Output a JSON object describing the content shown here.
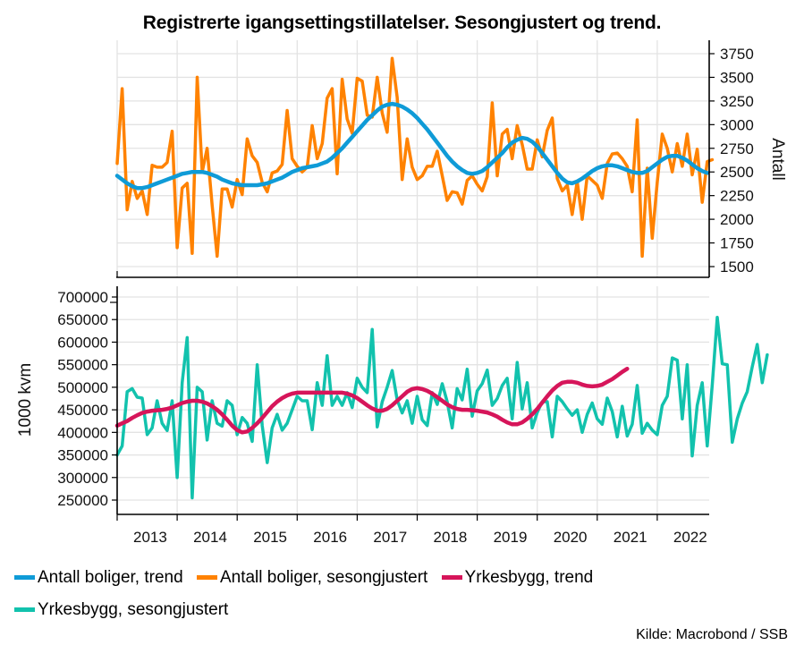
{
  "title": "Registrerte igangsettingstillatelser. Sesongjustert og trend.",
  "source": "Kilde: Macrobond / SSB",
  "colors": {
    "boliger_trend": "#0f9bd7",
    "boliger_sa": "#ff8200",
    "yrkesbygg_trend": "#d6155a",
    "yrkesbygg_sa": "#12c2ad",
    "grid": "#e3e3e3",
    "axis": "#000000"
  },
  "legend": [
    {
      "key": "boliger_trend",
      "label": "Antall boliger, trend"
    },
    {
      "key": "boliger_sa",
      "label": "Antall boliger, sesongjustert"
    },
    {
      "key": "yrkesbygg_trend",
      "label": "Yrkesbygg, trend"
    },
    {
      "key": "yrkesbygg_sa",
      "label": "Yrkesbygg, sesongjustert"
    }
  ],
  "chart_data": [
    {
      "type": "line",
      "panel": "top",
      "title": "Registrerte igangsettingstillatelser. Sesongjustert og trend.",
      "xlabel": "",
      "ylabel": "Antall",
      "yaxis_side": "right",
      "ylim": [
        1400,
        3850
      ],
      "yticks": [
        1500,
        1750,
        2000,
        2250,
        2500,
        2750,
        3000,
        3250,
        3500,
        3750
      ],
      "x_start": "2013-01",
      "x_frequency": "monthly",
      "grid": true,
      "series": [
        {
          "name": "Antall boliger, trend",
          "key": "boliger_trend",
          "values": [
            2460,
            2420,
            2380,
            2350,
            2330,
            2330,
            2340,
            2360,
            2380,
            2400,
            2420,
            2440,
            2460,
            2480,
            2490,
            2500,
            2500,
            2500,
            2490,
            2470,
            2450,
            2420,
            2400,
            2380,
            2370,
            2360,
            2360,
            2360,
            2360,
            2370,
            2380,
            2400,
            2420,
            2440,
            2470,
            2500,
            2520,
            2540,
            2550,
            2560,
            2570,
            2590,
            2610,
            2650,
            2700,
            2750,
            2810,
            2870,
            2930,
            2990,
            3050,
            3100,
            3150,
            3190,
            3210,
            3220,
            3210,
            3190,
            3160,
            3120,
            3070,
            3010,
            2950,
            2880,
            2810,
            2740,
            2670,
            2610,
            2560,
            2520,
            2490,
            2480,
            2490,
            2510,
            2550,
            2600,
            2650,
            2700,
            2760,
            2810,
            2840,
            2860,
            2850,
            2820,
            2770,
            2700,
            2630,
            2560,
            2490,
            2430,
            2390,
            2380,
            2400,
            2430,
            2470,
            2510,
            2540,
            2560,
            2570,
            2570,
            2560,
            2540,
            2520,
            2500,
            2490,
            2490,
            2510,
            2550,
            2590,
            2630,
            2660,
            2670,
            2670,
            2650,
            2620,
            2580,
            2540,
            2510,
            2490
          ]
        },
        {
          "name": "Antall boliger, sesongjustert",
          "key": "boliger_sa",
          "values": [
            2590,
            3380,
            2100,
            2400,
            2220,
            2300,
            2050,
            2570,
            2550,
            2550,
            2600,
            2930,
            1700,
            2330,
            2380,
            1640,
            3500,
            2500,
            2750,
            2150,
            1610,
            2320,
            2320,
            2130,
            2420,
            2260,
            2850,
            2670,
            2600,
            2390,
            2290,
            2490,
            2510,
            2580,
            3150,
            2640,
            2560,
            2500,
            2550,
            2990,
            2640,
            2800,
            3280,
            3380,
            2480,
            3480,
            3060,
            2910,
            3490,
            3460,
            3100,
            3080,
            3500,
            3120,
            2920,
            3700,
            3290,
            2420,
            2850,
            2550,
            2420,
            2460,
            2560,
            2560,
            2720,
            2460,
            2200,
            2290,
            2280,
            2160,
            2410,
            2460,
            2370,
            2300,
            2450,
            3230,
            2460,
            2900,
            2950,
            2640,
            2990,
            2790,
            2530,
            2530,
            2840,
            2660,
            2940,
            3070,
            2430,
            2300,
            2360,
            2050,
            2400,
            2000,
            2460,
            2410,
            2360,
            2220,
            2590,
            2690,
            2700,
            2640,
            2560,
            2290,
            3050,
            1610,
            2540,
            1800,
            2390,
            2900,
            2750,
            2500,
            2800,
            2560,
            2900,
            2470,
            2740,
            2180,
            2610,
            2630
          ]
        }
      ]
    },
    {
      "type": "line",
      "panel": "bottom",
      "xlabel": "",
      "ylabel": "1000 kvm",
      "yaxis_side": "left",
      "ylim": [
        225000,
        725000
      ],
      "yticks": [
        250000,
        300000,
        350000,
        400000,
        450000,
        500000,
        550000,
        600000,
        650000,
        700000
      ],
      "x_start": "2013-01",
      "x_frequency": "monthly",
      "xticks": [
        "2013",
        "2014",
        "2015",
        "2016",
        "2017",
        "2018",
        "2019",
        "2020",
        "2021",
        "2022"
      ],
      "grid": true,
      "series": [
        {
          "name": "Yrkesbygg, trend",
          "key": "yrkesbygg_trend",
          "values": [
            415000,
            420000,
            425000,
            432000,
            438000,
            443000,
            446000,
            448000,
            449000,
            450000,
            452000,
            455000,
            460000,
            465000,
            468000,
            470000,
            470000,
            468000,
            464000,
            458000,
            450000,
            440000,
            428000,
            415000,
            405000,
            400000,
            402000,
            410000,
            420000,
            432000,
            445000,
            458000,
            468000,
            476000,
            482000,
            486000,
            488000,
            488000,
            488000,
            488000,
            488000,
            488000,
            488000,
            488000,
            488000,
            488000,
            486000,
            482000,
            476000,
            468000,
            460000,
            453000,
            448000,
            448000,
            452000,
            460000,
            470000,
            480000,
            490000,
            496000,
            498000,
            496000,
            492000,
            486000,
            478000,
            470000,
            462000,
            456000,
            452000,
            450000,
            450000,
            449000,
            448000,
            446000,
            444000,
            440000,
            435000,
            428000,
            422000,
            418000,
            418000,
            422000,
            430000,
            440000,
            452000,
            466000,
            480000,
            493000,
            503000,
            510000,
            512000,
            512000,
            510000,
            506000,
            503000,
            502000,
            503000,
            506000,
            512000,
            518000,
            526000,
            534000,
            541000
          ]
        },
        {
          "name": "Yrkesbygg, sesongjustert",
          "key": "yrkesbygg_sa",
          "values": [
            350000,
            370000,
            490000,
            497000,
            478000,
            476000,
            395000,
            410000,
            470000,
            420000,
            404000,
            470000,
            300000,
            510000,
            610000,
            255000,
            500000,
            490000,
            383000,
            470000,
            420000,
            414000,
            470000,
            460000,
            395000,
            433000,
            420000,
            380000,
            550000,
            415000,
            333000,
            410000,
            440000,
            405000,
            420000,
            450000,
            480000,
            470000,
            470000,
            406000,
            510000,
            460000,
            570000,
            460000,
            480000,
            460000,
            488000,
            455000,
            520000,
            500000,
            488000,
            628000,
            412000,
            468000,
            500000,
            537000,
            472000,
            443000,
            470000,
            420000,
            480000,
            428000,
            415000,
            488000,
            462000,
            508000,
            468000,
            410000,
            497000,
            472000,
            540000,
            436000,
            492000,
            508000,
            538000,
            460000,
            475000,
            504000,
            520000,
            430000,
            555000,
            452000,
            510000,
            410000,
            444000,
            468000,
            468000,
            390000,
            480000,
            468000,
            452000,
            438000,
            450000,
            400000,
            440000,
            465000,
            430000,
            418000,
            476000,
            446000,
            390000,
            458000,
            392000,
            418000,
            504000,
            398000,
            420000,
            405000,
            395000,
            460000,
            480000,
            565000,
            560000,
            430000,
            550000,
            348000,
            460000,
            510000,
            370000,
            505000,
            655000,
            552000,
            550000,
            378000,
            430000,
            465000,
            490000,
            545000,
            595000,
            510000,
            572000
          ]
        }
      ]
    }
  ]
}
